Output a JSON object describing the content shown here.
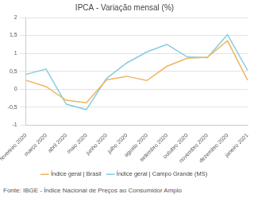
{
  "chart_data": {
    "type": "line",
    "title": "IPCA - Variação mensal (%)",
    "categories": [
      "fevereiro 2020",
      "março 2020",
      "abril 2020",
      "maio 2020",
      "junho 2020",
      "julho 2020",
      "agosto 2020",
      "setembro 2020",
      "outubro 2020",
      "novembro 2020",
      "dezembro 2020",
      "janeiro 2021"
    ],
    "series": [
      {
        "name": "Índice geral | Brasil",
        "color": "#efb55e",
        "values": [
          0.25,
          0.07,
          -0.31,
          -0.38,
          0.26,
          0.36,
          0.24,
          0.64,
          0.86,
          0.89,
          1.35,
          0.25
        ]
      },
      {
        "name": "Índice geral | Campo Grande (MS)",
        "color": "#86cde0",
        "values": [
          0.41,
          0.56,
          -0.42,
          -0.57,
          0.3,
          0.73,
          1.04,
          1.25,
          0.9,
          0.88,
          1.52,
          0.52
        ]
      }
    ],
    "ylim": [
      -1,
      2
    ],
    "yticks": [
      -1,
      {
        "value": -0.5,
        "label": "-0,5"
      },
      0,
      {
        "value": 0.5,
        "label": "0,5"
      },
      1,
      {
        "value": 1.5,
        "label": "1,5"
      },
      2
    ],
    "grid": true,
    "legend": "bottom",
    "source": "Fonte: IBGE - Índice Nacional de Preços ao Consumidor Amplo"
  }
}
